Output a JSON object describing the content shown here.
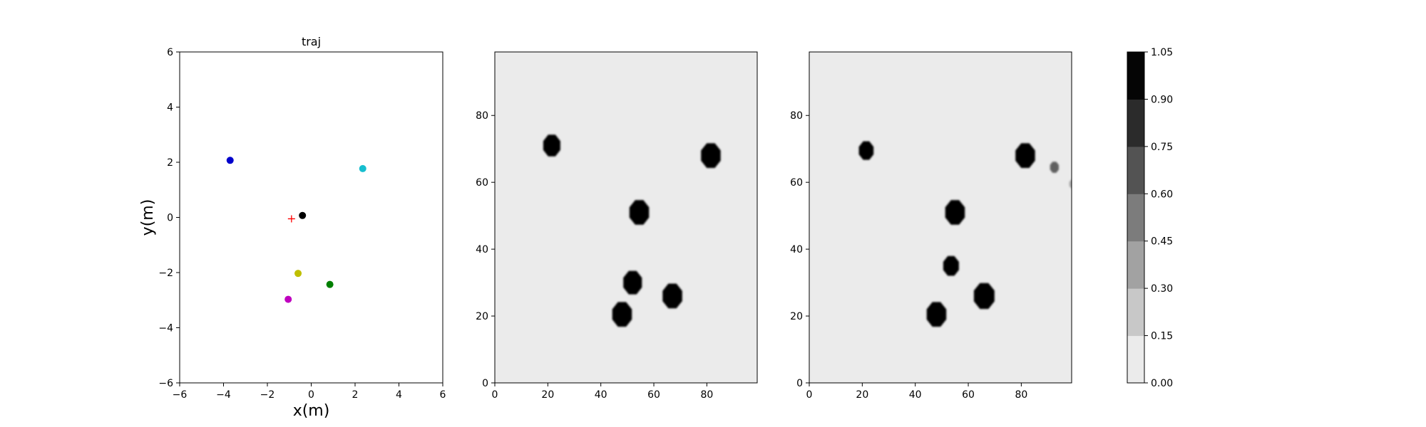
{
  "chart_data": [
    {
      "type": "scatter",
      "title": "traj",
      "xlabel": "x(m)",
      "ylabel": "y(m)",
      "xlim": [
        -6,
        6
      ],
      "ylim": [
        -6,
        6
      ],
      "xticks": [
        "−6",
        "−4",
        "−2",
        "0",
        "2",
        "4",
        "6"
      ],
      "yticks": [
        "−6",
        "−4",
        "−2",
        "0",
        "2",
        "4",
        "6"
      ],
      "points": [
        {
          "x": -3.7,
          "y": 2.07,
          "color": "#0000cc"
        },
        {
          "x": 2.35,
          "y": 1.77,
          "color": "#17becf"
        },
        {
          "x": -0.4,
          "y": 0.07,
          "color": "#000000"
        },
        {
          "x": -0.6,
          "y": -2.03,
          "color": "#bfbf00"
        },
        {
          "x": 0.85,
          "y": -2.43,
          "color": "#007f00"
        },
        {
          "x": -1.05,
          "y": -2.97,
          "color": "#bf00bf"
        }
      ],
      "target": {
        "x": -0.9,
        "y": -0.05,
        "color": "#ff0000",
        "marker": "+"
      },
      "grid": false
    },
    {
      "type": "heatmap",
      "title": "",
      "xlim": [
        0,
        99
      ],
      "ylim": [
        0,
        99
      ],
      "xticks": [
        "0",
        "20",
        "40",
        "60",
        "80"
      ],
      "yticks": [
        "0",
        "20",
        "40",
        "60",
        "80"
      ],
      "blobs": [
        {
          "x": 21.5,
          "y": 71,
          "r": 3.5,
          "level": 1.0
        },
        {
          "x": 81.5,
          "y": 68,
          "r": 4.0,
          "level": 1.0
        },
        {
          "x": 54.5,
          "y": 51,
          "r": 4.0,
          "level": 1.0
        },
        {
          "x": 52,
          "y": 30,
          "r": 3.8,
          "level": 1.0
        },
        {
          "x": 67,
          "y": 26,
          "r": 4.0,
          "level": 1.0
        },
        {
          "x": 48,
          "y": 20.5,
          "r": 4.0,
          "level": 1.0
        }
      ],
      "background_level": 0.05
    },
    {
      "type": "heatmap",
      "title": "",
      "xlim": [
        0,
        99
      ],
      "ylim": [
        0,
        99
      ],
      "xticks": [
        "0",
        "20",
        "40",
        "60",
        "80"
      ],
      "yticks": [
        "0",
        "20",
        "40",
        "60",
        "80"
      ],
      "blobs": [
        {
          "x": 21.5,
          "y": 69.5,
          "r": 3.0,
          "level": 1.0
        },
        {
          "x": 81.5,
          "y": 68,
          "r": 4.0,
          "level": 1.0
        },
        {
          "x": 92.5,
          "y": 64.5,
          "r": 1.8,
          "level": 0.6
        },
        {
          "x": 99.5,
          "y": 59.5,
          "r": 1.5,
          "level": 0.3
        },
        {
          "x": 55,
          "y": 51,
          "r": 4.0,
          "level": 1.0
        },
        {
          "x": 53.5,
          "y": 35,
          "r": 3.2,
          "level": 1.0
        },
        {
          "x": 66,
          "y": 26,
          "r": 4.2,
          "level": 1.0
        },
        {
          "x": 48,
          "y": 20.5,
          "r": 4.0,
          "level": 1.0
        }
      ],
      "background_level": 0.05
    }
  ],
  "colorbar": {
    "ticks": [
      "0.00",
      "0.15",
      "0.30",
      "0.45",
      "0.60",
      "0.75",
      "0.90",
      "1.05"
    ],
    "bands": [
      "#ebebeb",
      "#c8c8c8",
      "#a2a2a2",
      "#7c7c7c",
      "#535353",
      "#2b2b2b",
      "#050505"
    ]
  }
}
